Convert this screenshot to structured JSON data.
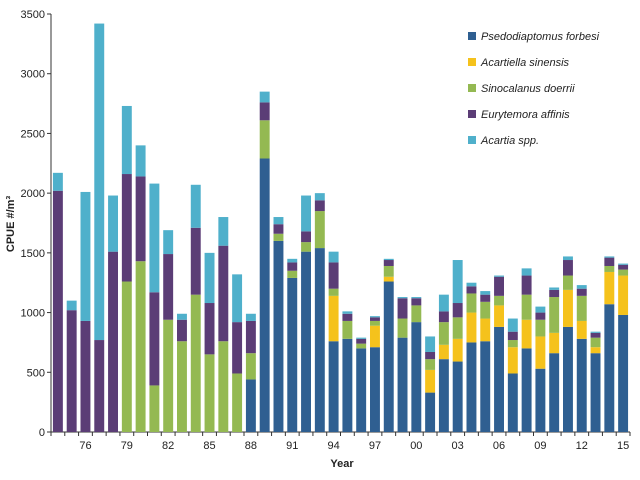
{
  "chart_data": {
    "type": "bar",
    "stacked": true,
    "xlabel": "Year",
    "ylabel": "CPUE #/m³",
    "ylim": [
      0,
      3500
    ],
    "yticks": [
      0,
      500,
      1000,
      1500,
      2000,
      2500,
      3000,
      3500
    ],
    "x_tick_labels": [
      "76",
      "79",
      "82",
      "85",
      "88",
      "91",
      "94",
      "97",
      "00",
      "03",
      "06",
      "09",
      "12",
      "15"
    ],
    "categories": [
      "1974",
      "1975",
      "1976",
      "1977",
      "1978",
      "1979",
      "1980",
      "1981",
      "1982",
      "1983",
      "1984",
      "1985",
      "1986",
      "1987",
      "1988",
      "1989",
      "1990",
      "1991",
      "1992",
      "1993",
      "1994",
      "1995",
      "1996",
      "1997",
      "1998",
      "1999",
      "2000",
      "2001",
      "2002",
      "2003",
      "2004",
      "2005",
      "2006",
      "2007",
      "2008",
      "2009",
      "2010",
      "2011",
      "2012",
      "2013",
      "2014",
      "2015"
    ],
    "legend_position": "top-right",
    "grid": false,
    "series": [
      {
        "name": "Psedodiaptomus forbesi",
        "color": "#2f5f91",
        "values": [
          0,
          0,
          0,
          0,
          0,
          0,
          0,
          0,
          0,
          0,
          0,
          0,
          0,
          0,
          440,
          2290,
          1600,
          1290,
          1510,
          1540,
          760,
          780,
          700,
          710,
          1260,
          790,
          920,
          330,
          610,
          590,
          750,
          760,
          880,
          490,
          700,
          530,
          660,
          880,
          780,
          660,
          1070,
          980
        ]
      },
      {
        "name": "Acartiella sinensis",
        "color": "#f5c21c",
        "values": [
          0,
          0,
          0,
          0,
          0,
          0,
          0,
          0,
          0,
          0,
          0,
          0,
          0,
          0,
          0,
          0,
          0,
          0,
          0,
          0,
          380,
          0,
          0,
          180,
          40,
          0,
          0,
          190,
          120,
          190,
          250,
          190,
          180,
          220,
          240,
          270,
          170,
          310,
          150,
          50,
          270,
          330
        ]
      },
      {
        "name": "Sinocalanus doerrii",
        "color": "#94b952",
        "values": [
          0,
          0,
          0,
          0,
          0,
          1260,
          1430,
          390,
          940,
          760,
          1150,
          650,
          760,
          490,
          220,
          320,
          60,
          60,
          80,
          310,
          60,
          150,
          40,
          40,
          90,
          160,
          140,
          90,
          190,
          180,
          160,
          140,
          80,
          60,
          210,
          140,
          300,
          120,
          210,
          80,
          50,
          50
        ]
      },
      {
        "name": "Eurytemora affinis",
        "color": "#5b3d76",
        "values": [
          2020,
          1020,
          930,
          770,
          1510,
          900,
          710,
          780,
          550,
          180,
          560,
          430,
          800,
          430,
          270,
          150,
          80,
          70,
          90,
          90,
          220,
          60,
          40,
          30,
          50,
          170,
          60,
          60,
          90,
          120,
          60,
          60,
          160,
          70,
          160,
          60,
          60,
          130,
          60,
          40,
          70,
          40
        ]
      },
      {
        "name": "Acartia spp.",
        "color": "#4fb0cb",
        "values": [
          150,
          80,
          1080,
          2650,
          470,
          570,
          260,
          910,
          200,
          50,
          360,
          420,
          240,
          400,
          60,
          90,
          60,
          30,
          300,
          60,
          90,
          20,
          10,
          10,
          10,
          10,
          10,
          130,
          140,
          360,
          30,
          30,
          10,
          110,
          60,
          50,
          20,
          30,
          30,
          10,
          10,
          10
        ]
      }
    ]
  }
}
